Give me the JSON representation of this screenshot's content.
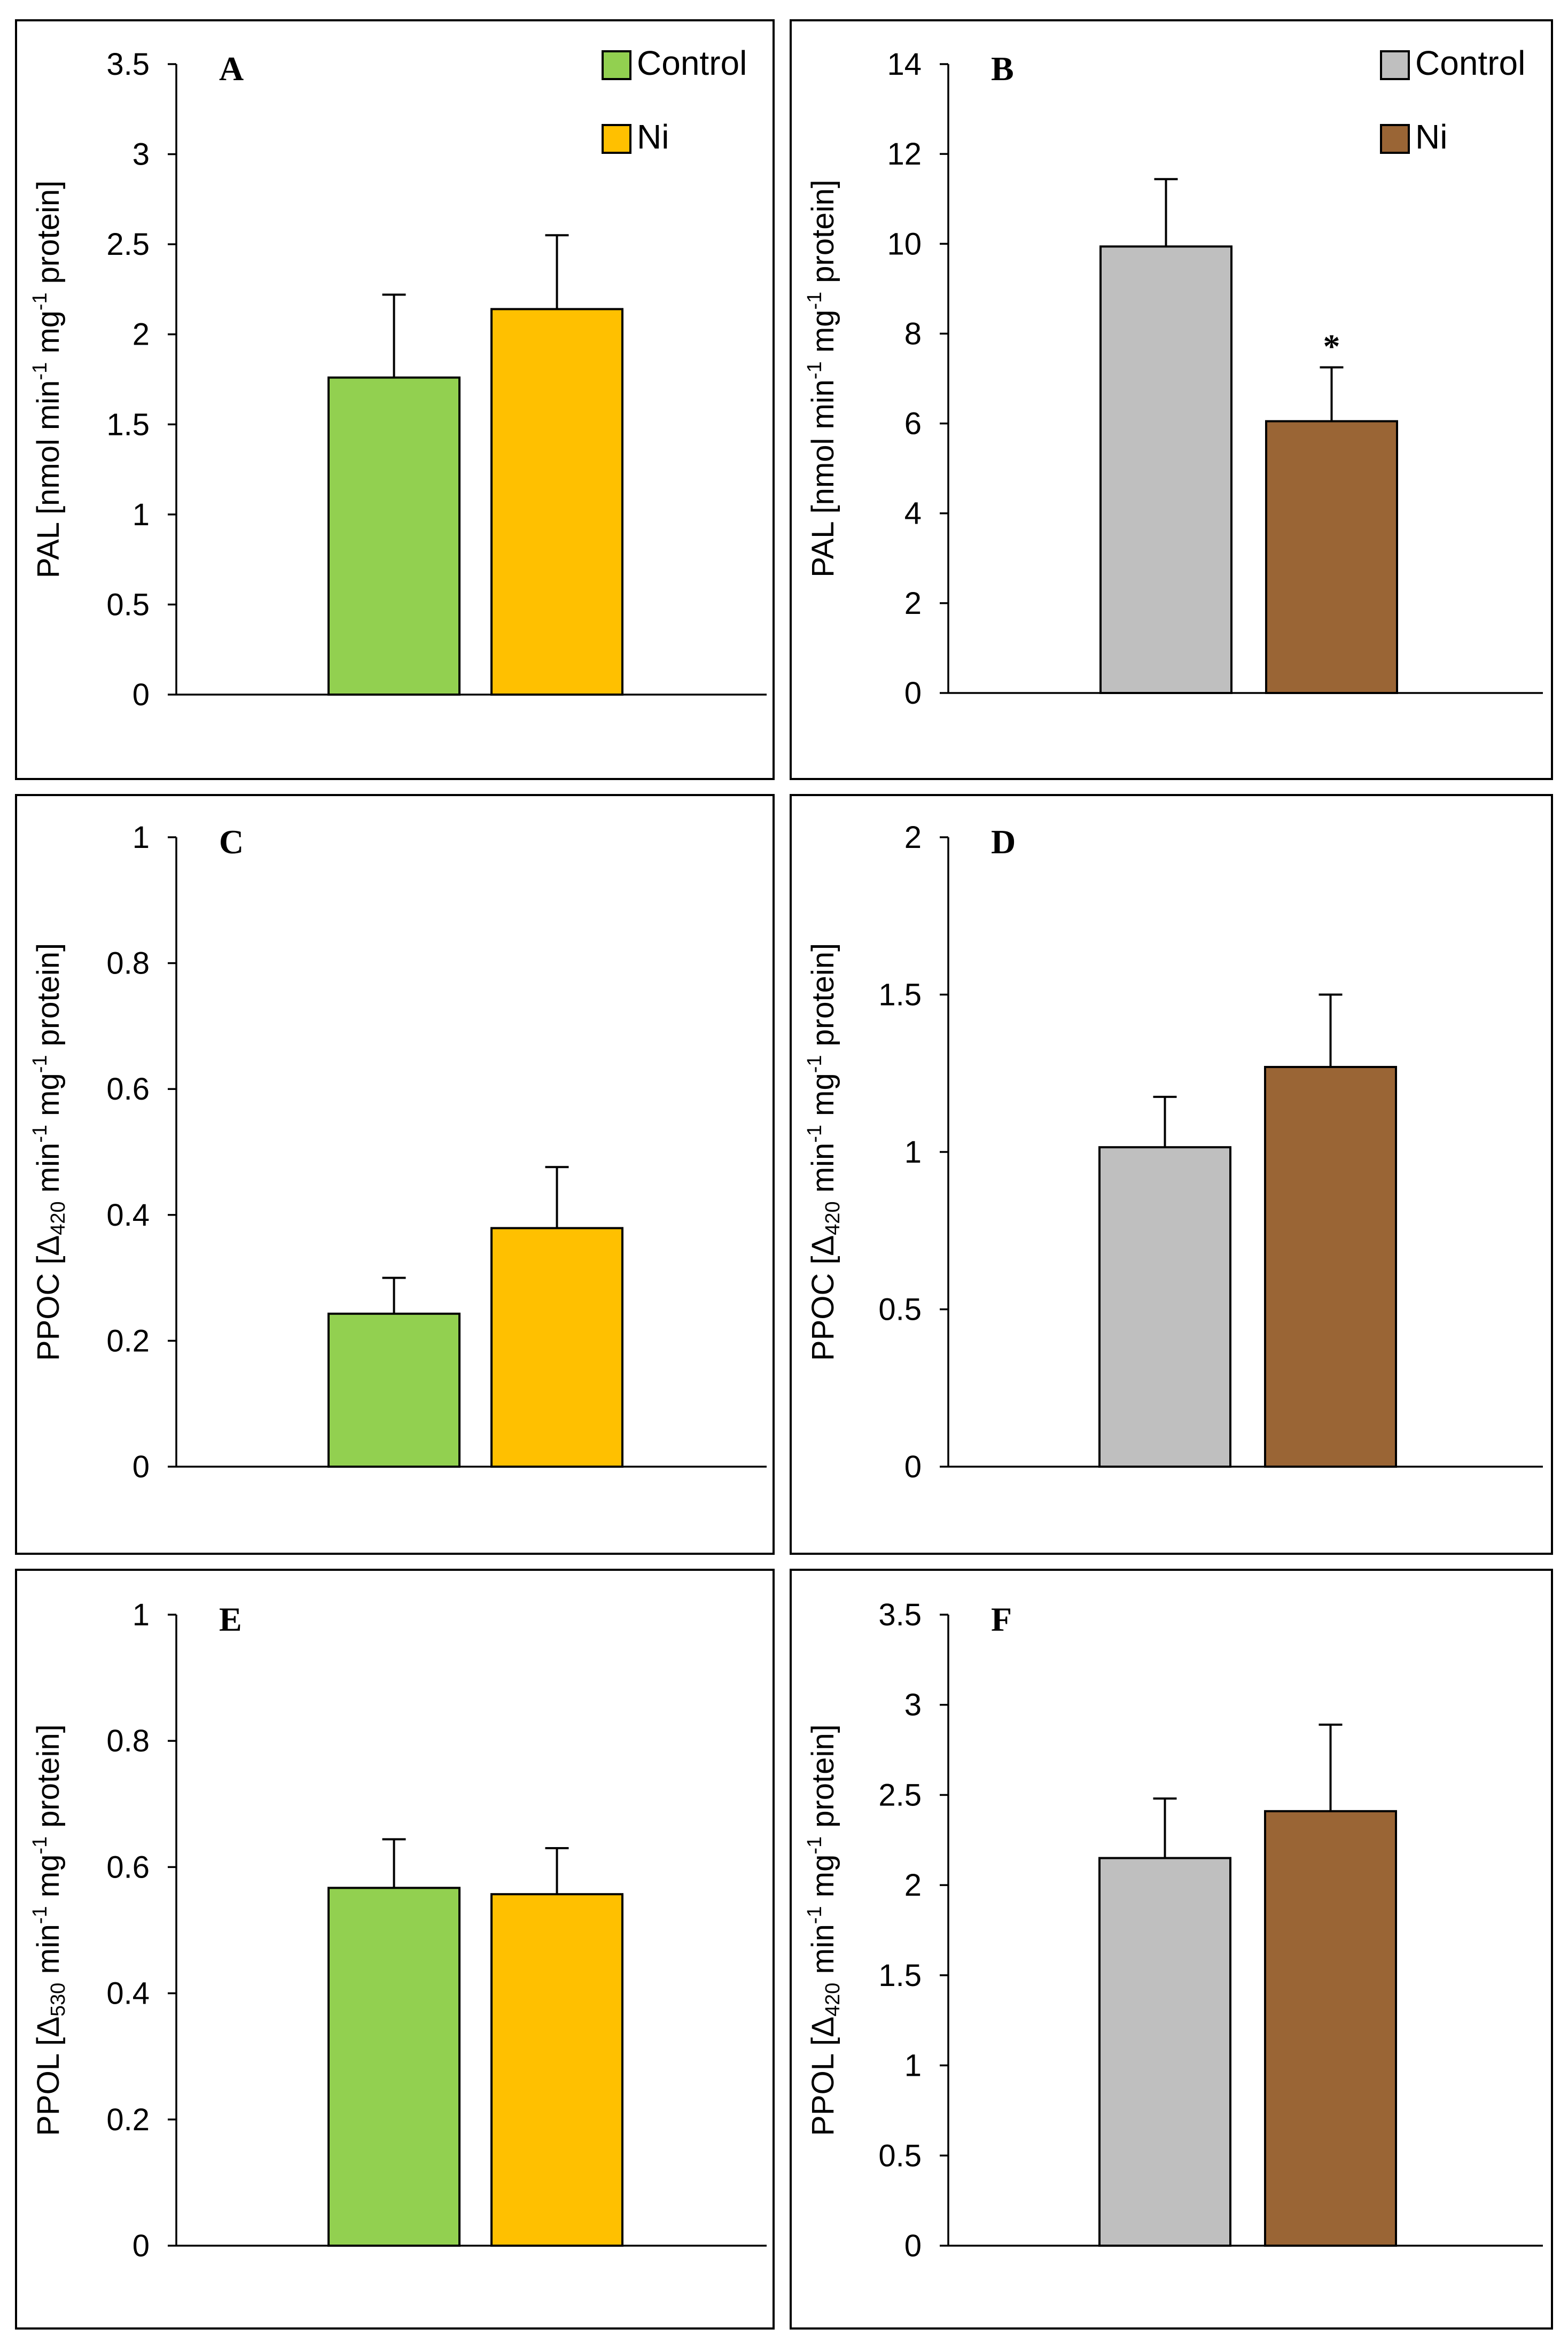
{
  "chart_data": [
    {
      "type": "bar",
      "panel": "A",
      "ylabel": "PAL [nmol min-1 mg-1 protein]",
      "ylabel_parts": [
        {
          "text": "PAL [nmol min"
        },
        {
          "text": "-1",
          "sup": true
        },
        {
          "text": " mg"
        },
        {
          "text": "-1",
          "sup": true
        },
        {
          "text": " protein]"
        }
      ],
      "ylim": [
        0,
        3.5
      ],
      "yticks": [
        "0",
        "0.5",
        "1",
        "1.5",
        "2",
        "2.5",
        "3",
        "3.5"
      ],
      "series": [
        {
          "name": "Control",
          "value": 1.76,
          "error": 0.46,
          "color": "#92d050"
        },
        {
          "name": "Ni",
          "value": 2.14,
          "error": 0.41,
          "color": "#ffc000"
        }
      ],
      "legend": [
        "Control",
        "Ni"
      ],
      "significance": [
        "",
        ""
      ]
    },
    {
      "type": "bar",
      "panel": "B",
      "ylabel": "PAL [nmol min-1 mg-1 protein]",
      "ylabel_parts": [
        {
          "text": "PAL [nmol min"
        },
        {
          "text": "-1",
          "sup": true
        },
        {
          "text": " mg"
        },
        {
          "text": "-1",
          "sup": true
        },
        {
          "text": " protein]"
        }
      ],
      "ylim": [
        0,
        14
      ],
      "yticks": [
        "0",
        "2",
        "4",
        "6",
        "8",
        "10",
        "12",
        "14"
      ],
      "series": [
        {
          "name": "Control",
          "value": 9.94,
          "error": 1.5,
          "color": "#bfbfbf"
        },
        {
          "name": "Ni",
          "value": 6.05,
          "error": 1.2,
          "color": "#9a6535"
        }
      ],
      "legend": [
        "Control",
        "Ni"
      ],
      "significance": [
        "",
        "*"
      ]
    },
    {
      "type": "bar",
      "panel": "C",
      "ylabel": "PPOC [Δ420 min-1 mg-1 protein]",
      "ylabel_parts": [
        {
          "text": "PPOC [Δ"
        },
        {
          "text": "420",
          "sub": true
        },
        {
          "text": " min"
        },
        {
          "text": "-1",
          "sup": true
        },
        {
          "text": " mg"
        },
        {
          "text": "-1",
          "sup": true
        },
        {
          "text": " protein]"
        }
      ],
      "ylim": [
        0,
        1
      ],
      "yticks": [
        "0",
        "0.2",
        "0.4",
        "0.6",
        "0.8",
        "1"
      ],
      "series": [
        {
          "name": "Control",
          "value": 0.243,
          "error": 0.057,
          "color": "#92d050"
        },
        {
          "name": "Ni",
          "value": 0.379,
          "error": 0.097,
          "color": "#ffc000"
        }
      ],
      "legend": null,
      "significance": [
        "",
        ""
      ]
    },
    {
      "type": "bar",
      "panel": "D",
      "ylabel": "PPOC [Δ420 min-1 mg-1 protein]",
      "ylabel_parts": [
        {
          "text": "PPOC [Δ"
        },
        {
          "text": "420",
          "sub": true
        },
        {
          "text": " min"
        },
        {
          "text": "-1",
          "sup": true
        },
        {
          "text": " mg"
        },
        {
          "text": "-1",
          "sup": true
        },
        {
          "text": " protein]"
        }
      ],
      "ylim": [
        0,
        2
      ],
      "yticks": [
        "0",
        "0.5",
        "1",
        "1.5",
        "2"
      ],
      "series": [
        {
          "name": "Control",
          "value": 1.015,
          "error": 0.16,
          "color": "#bfbfbf"
        },
        {
          "name": "Ni",
          "value": 1.27,
          "error": 0.23,
          "color": "#9a6535"
        }
      ],
      "legend": null,
      "significance": [
        "",
        ""
      ]
    },
    {
      "type": "bar",
      "panel": "E",
      "ylabel": "PPOL [Δ530 min-1 mg-1 protein]",
      "ylabel_parts": [
        {
          "text": "PPOL [Δ"
        },
        {
          "text": "530",
          "sub": true
        },
        {
          "text": " min"
        },
        {
          "text": "-1",
          "sup": true
        },
        {
          "text": " mg"
        },
        {
          "text": "-1",
          "sup": true
        },
        {
          "text": " protein]"
        }
      ],
      "ylim": [
        0,
        1
      ],
      "yticks": [
        "0",
        "0.2",
        "0.4",
        "0.6",
        "0.8",
        "1"
      ],
      "series": [
        {
          "name": "Control",
          "value": 0.567,
          "error": 0.077,
          "color": "#92d050"
        },
        {
          "name": "Ni",
          "value": 0.557,
          "error": 0.073,
          "color": "#ffc000"
        }
      ],
      "legend": null,
      "significance": [
        "",
        ""
      ]
    },
    {
      "type": "bar",
      "panel": "F",
      "ylabel": "PPOL [Δ420 min-1 mg-1 protein]",
      "ylabel_parts": [
        {
          "text": "PPOL [Δ"
        },
        {
          "text": "420",
          "sub": true
        },
        {
          "text": " min"
        },
        {
          "text": "-1",
          "sup": true
        },
        {
          "text": " mg"
        },
        {
          "text": "-1",
          "sup": true
        },
        {
          "text": " protein]"
        }
      ],
      "ylim": [
        0,
        3.5
      ],
      "yticks": [
        "0",
        "0.5",
        "1",
        "1.5",
        "2",
        "2.5",
        "3",
        "3.5"
      ],
      "series": [
        {
          "name": "Control",
          "value": 2.15,
          "error": 0.33,
          "color": "#bfbfbf"
        },
        {
          "name": "Ni",
          "value": 2.41,
          "error": 0.48,
          "color": "#9a6535"
        }
      ],
      "legend": null,
      "significance": [
        "",
        ""
      ]
    }
  ]
}
